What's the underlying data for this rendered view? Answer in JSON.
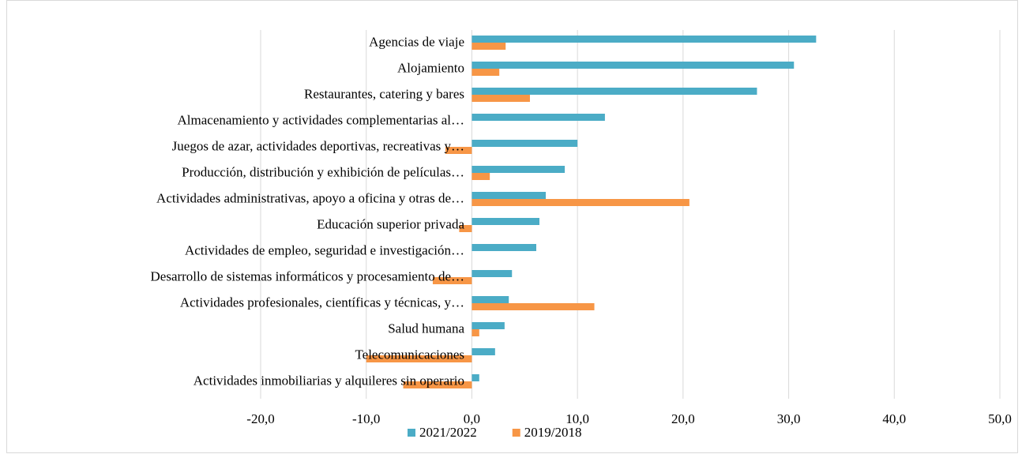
{
  "chart_data": {
    "type": "hbar",
    "categories": [
      "Agencias de viaje",
      "Alojamiento",
      "Restaurantes, catering y bares",
      "Almacenamiento y actividades complementarias al…",
      "Juegos de azar, actividades deportivas, recreativas y…",
      "Producción, distribución y exhibición de películas…",
      "Actividades administrativas, apoyo a oficina y otras de…",
      "Educación superior privada",
      "Actividades de empleo, seguridad e investigación…",
      "Desarrollo de sistemas informáticos y procesamiento de…",
      "Actividades profesionales, científicas y técnicas, y…",
      "Salud humana",
      "Telecomunicaciones",
      "Actividades inmobiliarias y alquileres sin operario"
    ],
    "series": [
      {
        "name": "2021/2022",
        "color": "#4bacc6",
        "values": [
          32.6,
          30.5,
          27.0,
          12.6,
          10.0,
          8.8,
          7.0,
          6.4,
          6.1,
          3.8,
          3.5,
          3.1,
          2.2,
          0.7
        ]
      },
      {
        "name": "2019/2018",
        "color": "#f79646",
        "values": [
          3.2,
          2.6,
          5.5,
          0.0,
          -2.5,
          1.7,
          20.6,
          -1.2,
          0.0,
          -3.7,
          11.6,
          0.7,
          -10.0,
          -6.5
        ]
      }
    ],
    "xlim": [
      -20,
      50
    ],
    "xticks": [
      {
        "value": -20,
        "label": "-20,0"
      },
      {
        "value": -10,
        "label": "-10,0"
      },
      {
        "value": 0,
        "label": "0,0"
      },
      {
        "value": 10,
        "label": "10,0"
      },
      {
        "value": 20,
        "label": "20,0"
      },
      {
        "value": 30,
        "label": "30,0"
      },
      {
        "value": 40,
        "label": "40,0"
      },
      {
        "value": 50,
        "label": "50,0"
      }
    ],
    "grid": true,
    "legend": "bottom"
  }
}
